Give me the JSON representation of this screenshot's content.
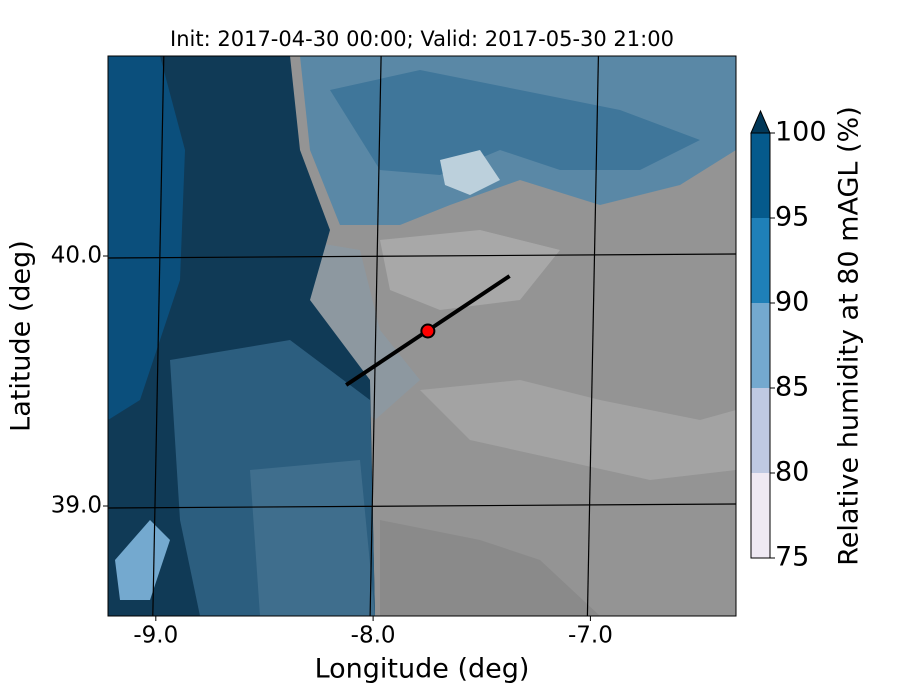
{
  "chart_data": {
    "type": "map",
    "title": "Init: 2017-04-30 00:00; Valid: 2017-05-30 21:00",
    "xlabel": "Longitude (deg)",
    "ylabel": "Latitude (deg)",
    "xlim": [
      -9.22,
      -6.33
    ],
    "ylim": [
      38.56,
      40.8
    ],
    "xticks": [
      {
        "value": -9,
        "label": "-9.0"
      },
      {
        "value": -8,
        "label": "-8.0"
      },
      {
        "value": -7,
        "label": "-7.0"
      }
    ],
    "yticks": [
      {
        "value": 39,
        "label": "39.0"
      },
      {
        "value": 40,
        "label": "40.0"
      }
    ],
    "grid": true,
    "section": {
      "start": [
        -8.124,
        39.484
      ],
      "end": [
        -7.372,
        39.92
      ],
      "color": "#000000"
    },
    "point": {
      "lon": -7.748,
      "lat": 39.7,
      "color": "#ff0000"
    },
    "colorbar": {
      "label": "Relative humidity at 80 mAGL (%)",
      "ticks": [
        75,
        80,
        85,
        90,
        95,
        100
      ],
      "colors": [
        "#efe9f3",
        "#bfc9e2",
        "#74a9cf",
        "#1f80b8",
        "#055a8c"
      ],
      "extend_color": "#023858"
    }
  }
}
